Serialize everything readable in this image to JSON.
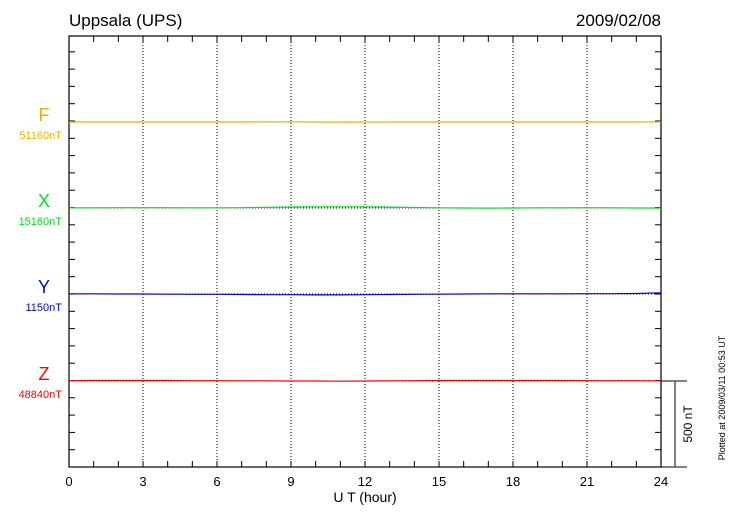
{
  "chart_data": {
    "type": "line",
    "title": "Uppsala (UPS)",
    "date": "2009/02/08",
    "xlabel": "U T (hour)",
    "xlim": [
      0,
      24
    ],
    "xticks": [
      0,
      3,
      6,
      9,
      12,
      15,
      18,
      21,
      24
    ],
    "grid": "vertical dotted every 3 hours",
    "scale_bar": "500 nT",
    "footnote": "Plotted at 2009/03/11 00:53 UT",
    "x": [
      0,
      1,
      2,
      3,
      4,
      5,
      6,
      7,
      8,
      9,
      10,
      11,
      12,
      13,
      14,
      15,
      16,
      17,
      18,
      19,
      20,
      21,
      22,
      23,
      24
    ],
    "series": [
      {
        "name": "F",
        "baseline_label": "51160nT",
        "color": "#f0b000",
        "values": [
          51160,
          51160,
          51160,
          51160,
          51160,
          51160,
          51160,
          51160,
          51161,
          51161,
          51160,
          51159,
          51159,
          51160,
          51160,
          51160,
          51160,
          51160,
          51160,
          51160,
          51160,
          51160,
          51160,
          51160,
          51161
        ]
      },
      {
        "name": "X",
        "baseline_label": "15160nT",
        "color": "#00e020",
        "values": [
          15161,
          15161,
          15162,
          15162,
          15162,
          15161,
          15161,
          15162,
          15164,
          15166,
          15167,
          15167,
          15167,
          15165,
          15163,
          15161,
          15160,
          15159,
          15160,
          15161,
          15161,
          15162,
          15161,
          15160,
          15160
        ]
      },
      {
        "name": "Y",
        "baseline_label": "1150nT",
        "color": "#0000ee",
        "values": [
          1151,
          1151,
          1150,
          1150,
          1149,
          1148,
          1148,
          1147,
          1146,
          1146,
          1145,
          1145,
          1146,
          1147,
          1148,
          1149,
          1150,
          1151,
          1151,
          1151,
          1151,
          1152,
          1152,
          1153,
          1157
        ]
      },
      {
        "name": "Z",
        "baseline_label": "48840nT",
        "color": "#ff0000",
        "values": [
          48842,
          48843,
          48843,
          48843,
          48843,
          48842,
          48842,
          48841,
          48841,
          48840,
          48840,
          48839,
          48840,
          48841,
          48842,
          48843,
          48843,
          48843,
          48843,
          48843,
          48843,
          48842,
          48842,
          48842,
          48841
        ]
      }
    ]
  }
}
